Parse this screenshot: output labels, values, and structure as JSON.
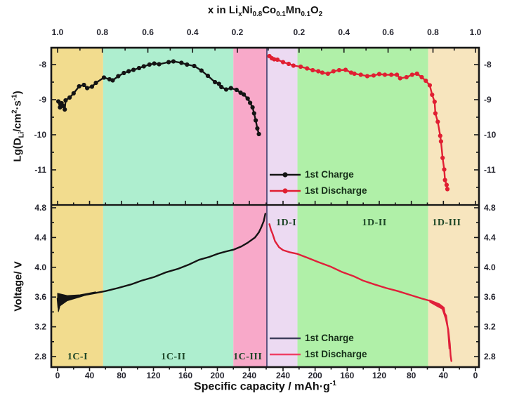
{
  "figure": {
    "title_parts": [
      {
        "t": "x in Li"
      },
      {
        "t": "x",
        "sub": true
      },
      {
        "t": "Ni"
      },
      {
        "t": "0.8",
        "sub": true
      },
      {
        "t": "Co"
      },
      {
        "t": "0.1",
        "sub": true
      },
      {
        "t": "Mn"
      },
      {
        "t": "0.1",
        "sub": true
      },
      {
        "t": "O"
      },
      {
        "t": "2",
        "sub": true
      }
    ],
    "x_axis_title_parts": [
      {
        "t": "Specific capacity / mAh·g"
      },
      {
        "t": "-1",
        "sup": true
      }
    ],
    "y_axis_top_parts": [
      {
        "t": "Lg(D"
      },
      {
        "t": "Li",
        "sub": true
      },
      {
        "t": "/cm"
      },
      {
        "t": "2",
        "sup": true
      },
      {
        "t": "·s"
      },
      {
        "t": "-1",
        "sup": true
      },
      {
        "t": ")"
      }
    ],
    "y_axis_bottom_label": "Voltage/ V"
  },
  "chart_data": {
    "type": "line",
    "title": "x in LixNi0.8Co0.1Mn0.1O2",
    "xlabel": "Specific capacity / mAh·g⁻¹",
    "ylabel_top": "Lg(DLi/cm²·s⁻¹)",
    "ylabel_bottom": "Voltage/ V",
    "layout_hint": "two stacked panels sharing x; left half = 1st charge (capacity 0-262), right half = mirrored 1st discharge (capacity 260-0); colored phase-region bands; legends inside right panels",
    "top_axis_ticks_charge": [
      {
        "label": "1.0",
        "cap": 0
      },
      {
        "label": "0.8",
        "cap": 56
      },
      {
        "label": "0.6",
        "cap": 113
      },
      {
        "label": "0.4",
        "cap": 169
      },
      {
        "label": "0.2",
        "cap": 225
      }
    ],
    "top_axis_ticks_discharge": [
      {
        "label": "0.2",
        "cap": 220
      },
      {
        "label": "0.4",
        "cap": 164
      },
      {
        "label": "0.6",
        "cap": 109
      },
      {
        "label": "0.8",
        "cap": 53
      },
      {
        "label": "1.0",
        "cap": 0
      }
    ],
    "bottom_axis_ticks_charge": [
      0,
      40,
      80,
      120,
      160,
      200,
      240
    ],
    "bottom_axis_ticks_discharge": [
      240,
      200,
      160,
      120,
      80,
      40,
      0
    ],
    "top_panel": {
      "yticks": [
        -8,
        -9,
        -10,
        -11
      ],
      "yticks_minor": [
        -7.5,
        -8.5,
        -9.5,
        -10.5,
        -11.5
      ],
      "ylim": [
        -12,
        -7.5
      ],
      "series": [
        {
          "name": "1st Charge",
          "color": "#141414",
          "marker": true,
          "side": "charge",
          "points": [
            [
              1,
              -9.05
            ],
            [
              3,
              -9.22
            ],
            [
              5,
              -9.1
            ],
            [
              7,
              -9.18
            ],
            [
              9,
              -9.28
            ],
            [
              10,
              -9.02
            ],
            [
              15,
              -8.94
            ],
            [
              20,
              -8.82
            ],
            [
              27,
              -8.62
            ],
            [
              33,
              -8.58
            ],
            [
              37,
              -8.67
            ],
            [
              43,
              -8.63
            ],
            [
              48,
              -8.52
            ],
            [
              58,
              -8.37
            ],
            [
              65,
              -8.42
            ],
            [
              69,
              -8.45
            ],
            [
              76,
              -8.33
            ],
            [
              83,
              -8.24
            ],
            [
              89,
              -8.19
            ],
            [
              95,
              -8.15
            ],
            [
              102,
              -8.1
            ],
            [
              108,
              -8.05
            ],
            [
              115,
              -8.0
            ],
            [
              121,
              -7.97
            ],
            [
              127,
              -7.99
            ],
            [
              139,
              -7.93
            ],
            [
              145,
              -7.91
            ],
            [
              155,
              -7.95
            ],
            [
              162,
              -8.0
            ],
            [
              171,
              -8.04
            ],
            [
              180,
              -8.17
            ],
            [
              188,
              -8.32
            ],
            [
              197,
              -8.5
            ],
            [
              202,
              -8.55
            ],
            [
              205,
              -8.64
            ],
            [
              211,
              -8.71
            ],
            [
              217,
              -8.67
            ],
            [
              224,
              -8.72
            ],
            [
              229,
              -8.8
            ],
            [
              233,
              -8.85
            ],
            [
              238,
              -8.97
            ],
            [
              241,
              -9.09
            ],
            [
              244,
              -9.22
            ],
            [
              246,
              -9.39
            ],
            [
              248,
              -9.59
            ],
            [
              250,
              -9.82
            ],
            [
              252,
              -9.98
            ]
          ]
        },
        {
          "name": "1st Discharge",
          "color": "#e01f32",
          "marker": true,
          "side": "discharge",
          "points": [
            [
              257,
              -7.76
            ],
            [
              254,
              -7.82
            ],
            [
              251,
              -7.85
            ],
            [
              247,
              -7.86
            ],
            [
              240,
              -7.93
            ],
            [
              233,
              -7.98
            ],
            [
              227,
              -8.03
            ],
            [
              218,
              -8.06
            ],
            [
              210,
              -8.11
            ],
            [
              203,
              -8.16
            ],
            [
              196,
              -8.19
            ],
            [
              191,
              -8.23
            ],
            [
              184,
              -8.26
            ],
            [
              177,
              -8.19
            ],
            [
              170,
              -8.16
            ],
            [
              162,
              -8.15
            ],
            [
              155,
              -8.23
            ],
            [
              151,
              -8.26
            ],
            [
              143,
              -8.29
            ],
            [
              135,
              -8.33
            ],
            [
              127,
              -8.31
            ],
            [
              120,
              -8.27
            ],
            [
              113,
              -8.29
            ],
            [
              105,
              -8.29
            ],
            [
              98,
              -8.29
            ],
            [
              94,
              -8.39
            ],
            [
              86,
              -8.36
            ],
            [
              79,
              -8.29
            ],
            [
              73,
              -8.26
            ],
            [
              67,
              -8.36
            ],
            [
              62,
              -8.46
            ],
            [
              57,
              -8.59
            ],
            [
              54,
              -8.86
            ],
            [
              51,
              -9.06
            ],
            [
              50,
              -9.39
            ],
            [
              47,
              -9.63
            ],
            [
              44,
              -10.03
            ],
            [
              43,
              -10.19
            ],
            [
              41,
              -10.66
            ],
            [
              39,
              -10.99
            ],
            [
              38,
              -11.29
            ],
            [
              36,
              -11.43
            ],
            [
              35,
              -11.55
            ]
          ]
        }
      ]
    },
    "bottom_panel": {
      "yticks": [
        4.8,
        4.4,
        4.0,
        3.6,
        3.2,
        2.8
      ],
      "yticks_minor": [
        4.6,
        4.2,
        3.8,
        3.4,
        3.0
      ],
      "ylim": [
        2.66,
        4.84
      ],
      "series": [
        {
          "name": "1st Charge",
          "color": "#141414",
          "marker": false,
          "side": "charge",
          "points": [
            [
              0,
              3.58
            ],
            [
              1,
              3.46
            ],
            [
              3,
              3.52
            ],
            [
              8,
              3.56
            ],
            [
              15,
              3.59
            ],
            [
              30,
              3.62
            ],
            [
              45,
              3.65
            ],
            [
              60,
              3.68
            ],
            [
              75,
              3.72
            ],
            [
              92,
              3.77
            ],
            [
              105,
              3.82
            ],
            [
              121,
              3.87
            ],
            [
              135,
              3.93
            ],
            [
              151,
              3.98
            ],
            [
              165,
              4.04
            ],
            [
              177,
              4.1
            ],
            [
              190,
              4.14
            ],
            [
              200,
              4.18
            ],
            [
              210,
              4.21
            ],
            [
              221,
              4.24
            ],
            [
              230,
              4.28
            ],
            [
              238,
              4.33
            ],
            [
              247,
              4.4
            ],
            [
              252,
              4.47
            ],
            [
              255,
              4.54
            ],
            [
              258,
              4.62
            ],
            [
              260,
              4.72
            ]
          ]
        },
        {
          "name": "1st Discharge",
          "color": "#e0203a",
          "marker": false,
          "side": "discharge",
          "points": [
            [
              257,
              4.58
            ],
            [
              255,
              4.5
            ],
            [
              253,
              4.45
            ],
            [
              250,
              4.35
            ],
            [
              245,
              4.27
            ],
            [
              240,
              4.23
            ],
            [
              231,
              4.2
            ],
            [
              222,
              4.18
            ],
            [
              210,
              4.13
            ],
            [
              196,
              4.07
            ],
            [
              181,
              4.01
            ],
            [
              167,
              3.94
            ],
            [
              152,
              3.88
            ],
            [
              140,
              3.82
            ],
            [
              126,
              3.77
            ],
            [
              111,
              3.72
            ],
            [
              97,
              3.68
            ],
            [
              82,
              3.63
            ],
            [
              67,
              3.58
            ],
            [
              57,
              3.55
            ],
            [
              47,
              3.5
            ],
            [
              41,
              3.44
            ],
            [
              37,
              3.31
            ],
            [
              34,
              3.16
            ],
            [
              32,
              2.97
            ],
            [
              31,
              2.81
            ],
            [
              30,
              2.74
            ]
          ]
        }
      ],
      "charge_wedge": [
        [
          0,
          3.65
        ],
        [
          12,
          3.62
        ],
        [
          28,
          3.63
        ],
        [
          48,
          3.67
        ],
        [
          28,
          3.6
        ],
        [
          12,
          3.55
        ],
        [
          3,
          3.48
        ],
        [
          1,
          3.4
        ],
        [
          0,
          3.56
        ]
      ],
      "discharge_wedge": [
        [
          57,
          3.56
        ],
        [
          45,
          3.51
        ],
        [
          39,
          3.46
        ],
        [
          35,
          3.2
        ],
        [
          33,
          2.9
        ],
        [
          34,
          3.18
        ],
        [
          36,
          3.35
        ],
        [
          40,
          3.43
        ],
        [
          47,
          3.47
        ],
        [
          57,
          3.53
        ]
      ]
    },
    "regions_charge": [
      {
        "label": "1C-I",
        "color": "#f2dc8e",
        "from": -8,
        "to": 57,
        "label_cap": 25
      },
      {
        "label": "1C-II",
        "color": "#aeeecf",
        "from": 57,
        "to": 220,
        "label_cap": 145
      },
      {
        "label": "1C-III",
        "color": "#f8a9c9",
        "from": 220,
        "to": 263,
        "label_cap": 238
      }
    ],
    "regions_discharge": [
      {
        "label": "1D-I",
        "color": "#ecdaf2",
        "from": 260,
        "to": 222,
        "label_cap": 236
      },
      {
        "label": "1D-II",
        "color": "#b0f0a8",
        "from": 222,
        "to": 59,
        "label_cap": 126
      },
      {
        "label": "1D-III",
        "color": "#f7e5be",
        "from": 59,
        "to": -4.4,
        "label_cap": 36
      }
    ],
    "legend_top": [
      {
        "label": "1st Charge",
        "color": "#141414"
      },
      {
        "label": "1st Discharge",
        "color": "#e01f32"
      }
    ],
    "legend_bottom": [
      {
        "label": "1st  Charge",
        "color": "#3f3f5c"
      },
      {
        "label": "1st  Discharge",
        "color": "#ef4066"
      }
    ],
    "divider_color": "#3c3c6a",
    "text_colors": {
      "region_label": "#1c4526",
      "legend_text": "#152e18",
      "tick_label": "#24242e"
    }
  }
}
